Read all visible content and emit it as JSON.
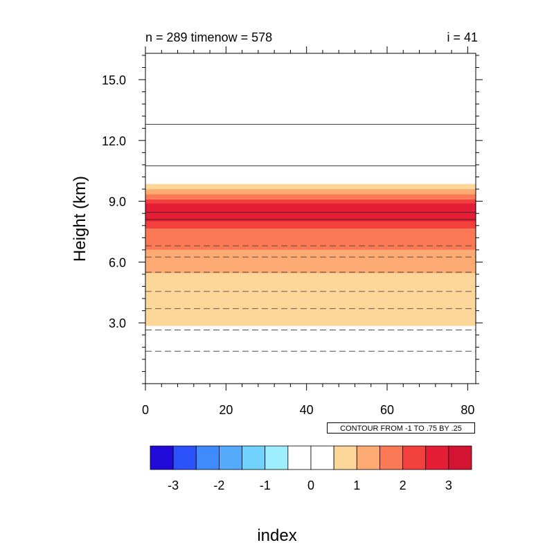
{
  "chart_data": {
    "type": "heatmap",
    "left_title": "n = 289 timenow = 578",
    "right_title": "i = 41",
    "xlabel": "index",
    "ylabel": "Height (km)",
    "xlim": [
      0,
      82
    ],
    "ylim": [
      0,
      16.3
    ],
    "x_ticks": [
      0,
      20,
      40,
      60,
      80
    ],
    "x_tick_labels": [
      "0",
      "20",
      "40",
      "60",
      "80"
    ],
    "y_ticks": [
      3.0,
      6.0,
      9.0,
      12.0,
      15.0
    ],
    "y_tick_labels": [
      "3.0",
      "6.0",
      "9.0",
      "12.0",
      "15.0"
    ],
    "contour_info": "CONTOUR FROM -1 TO .75 BY .25",
    "bands": [
      {
        "y0": 2.85,
        "y1": 5.45,
        "level": "0.5-1",
        "color": "#fdd79a"
      },
      {
        "y0": 5.45,
        "y1": 6.6,
        "level": "1-1.5",
        "color": "#fdab72"
      },
      {
        "y0": 6.6,
        "y1": 7.65,
        "level": "1.5-2",
        "color": "#fb7a55"
      },
      {
        "y0": 7.65,
        "y1": 8.0,
        "level": "2-2.5",
        "color": "#f2403d"
      },
      {
        "y0": 8.0,
        "y1": 8.9,
        "level": "2.5-3",
        "color": "#e51d35"
      },
      {
        "y0": 8.9,
        "y1": 9.1,
        "level": "2-2.5",
        "color": "#f2403d"
      },
      {
        "y0": 9.1,
        "y1": 9.35,
        "level": "1.5-2",
        "color": "#fb7a55"
      },
      {
        "y0": 9.35,
        "y1": 9.6,
        "level": "1-1.5",
        "color": "#fdab72"
      },
      {
        "y0": 9.6,
        "y1": 9.85,
        "level": "0.5-1",
        "color": "#fdd79a"
      }
    ],
    "contour_lines": [
      {
        "y": 1.6,
        "style": "dashed"
      },
      {
        "y": 2.65,
        "style": "dashed"
      },
      {
        "y": 3.7,
        "style": "dashed"
      },
      {
        "y": 4.55,
        "style": "dashed"
      },
      {
        "y": 5.5,
        "style": "dashed"
      },
      {
        "y": 6.25,
        "style": "dashed"
      },
      {
        "y": 6.8,
        "style": "dashed"
      },
      {
        "y": 8.1,
        "style": "solid"
      },
      {
        "y": 8.45,
        "style": "solid"
      },
      {
        "y": 10.75,
        "style": "solid"
      },
      {
        "y": 12.8,
        "style": "solid"
      }
    ],
    "colorbar": {
      "colors": [
        "#2109d9",
        "#2b52fb",
        "#3f8bfe",
        "#56aafb",
        "#72d2fe",
        "#9deefe",
        "#ffffff",
        "#ffffff",
        "#fdd79a",
        "#fdab72",
        "#fb7a55",
        "#f2403d",
        "#e51d35",
        "#d21331"
      ],
      "labels": [
        "-3",
        "-2",
        "-1",
        "0",
        "1",
        "2",
        "3"
      ]
    }
  }
}
